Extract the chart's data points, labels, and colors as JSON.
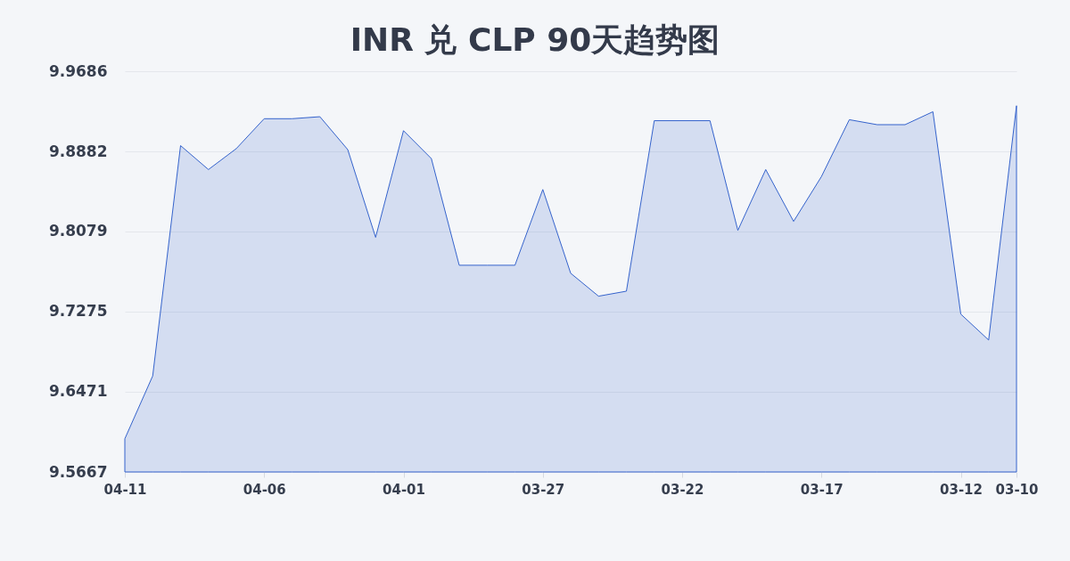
{
  "chart_data": {
    "type": "area",
    "title": "INR 兑 CLP 90天趋势图",
    "categories": [
      "04-11",
      null,
      null,
      null,
      null,
      "04-06",
      null,
      null,
      null,
      null,
      "04-01",
      null,
      null,
      null,
      null,
      "03-27",
      null,
      null,
      null,
      null,
      "03-22",
      null,
      null,
      null,
      null,
      "03-17",
      null,
      null,
      null,
      null,
      "03-12",
      null,
      "03-10"
    ],
    "values": [
      9.6,
      9.663,
      9.894,
      9.87,
      9.891,
      9.921,
      9.921,
      9.923,
      9.89,
      9.802,
      9.909,
      9.881,
      9.774,
      9.774,
      9.774,
      9.85,
      9.766,
      9.743,
      9.748,
      9.919,
      9.919,
      9.919,
      9.809,
      9.87,
      9.818,
      9.863,
      9.92,
      9.915,
      9.915,
      9.928,
      9.725,
      9.699,
      9.934
    ],
    "color": "#3563cc",
    "ylim": [
      9.5667,
      9.9686
    ],
    "yticks": [
      9.5667,
      9.6471,
      9.7275,
      9.8079,
      9.8882,
      9.9686
    ],
    "grid": "y"
  }
}
